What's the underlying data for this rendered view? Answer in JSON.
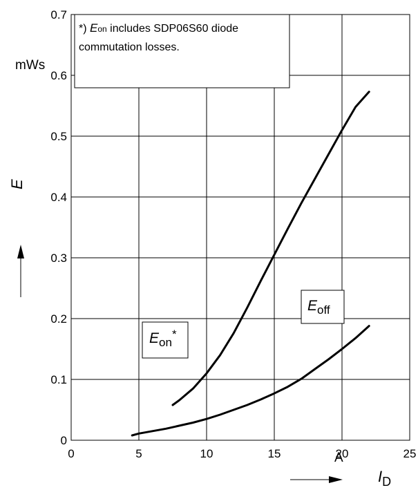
{
  "chart_data": {
    "type": "line",
    "note": {
      "prefix": "*) ",
      "var": "E",
      "sub": "on",
      "text_line1": " includes SDP06S60 diode",
      "text_line2": "commutation losses."
    },
    "ylabel": "E",
    "yunit": "mWs",
    "xlabel": {
      "var": "I",
      "sub": "D"
    },
    "xunit": "A",
    "xlim": [
      0,
      25
    ],
    "ylim": [
      0,
      0.7
    ],
    "grid": true,
    "x_ticks": [
      "0",
      "5",
      "10",
      "15",
      "20",
      "25"
    ],
    "y_ticks": [
      "0",
      "0.1",
      "0.2",
      "0.3",
      "0.4",
      "0.5",
      "0.6",
      "0.7"
    ],
    "series": [
      {
        "name": "E_on*",
        "label": {
          "var": "E",
          "sub": "on",
          "sup": "*"
        },
        "points": [
          [
            7.5,
            0.058
          ],
          [
            8.0,
            0.066
          ],
          [
            9.0,
            0.085
          ],
          [
            10.0,
            0.11
          ],
          [
            11.0,
            0.14
          ],
          [
            12.0,
            0.176
          ],
          [
            13.0,
            0.218
          ],
          [
            14.0,
            0.262
          ],
          [
            15.0,
            0.305
          ],
          [
            16.0,
            0.348
          ],
          [
            17.0,
            0.39
          ],
          [
            18.0,
            0.43
          ],
          [
            19.0,
            0.47
          ],
          [
            20.0,
            0.51
          ],
          [
            21.0,
            0.548
          ],
          [
            22.0,
            0.573
          ]
        ]
      },
      {
        "name": "E_off",
        "label": {
          "var": "E",
          "sub": "off",
          "sup": ""
        },
        "points": [
          [
            4.5,
            0.008
          ],
          [
            5.0,
            0.011
          ],
          [
            6.0,
            0.015
          ],
          [
            7.0,
            0.019
          ],
          [
            8.0,
            0.024
          ],
          [
            9.0,
            0.029
          ],
          [
            10.0,
            0.035
          ],
          [
            11.0,
            0.042
          ],
          [
            12.0,
            0.05
          ],
          [
            13.0,
            0.058
          ],
          [
            14.0,
            0.067
          ],
          [
            15.0,
            0.077
          ],
          [
            16.0,
            0.088
          ],
          [
            17.0,
            0.101
          ],
          [
            18.0,
            0.117
          ],
          [
            19.0,
            0.133
          ],
          [
            20.0,
            0.15
          ],
          [
            21.0,
            0.168
          ],
          [
            22.0,
            0.188
          ]
        ]
      }
    ]
  }
}
